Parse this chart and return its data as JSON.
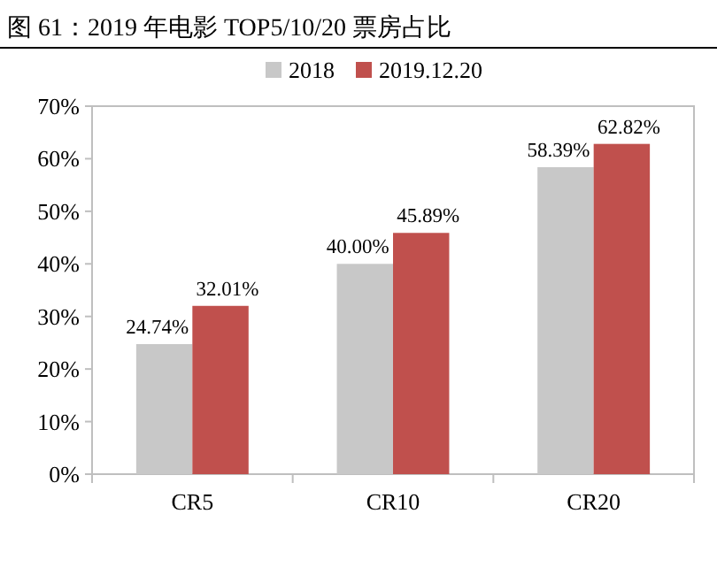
{
  "chart_data": {
    "type": "bar",
    "title": "图 61：2019 年电影 TOP5/10/20 票房占比",
    "categories": [
      "CR5",
      "CR10",
      "CR20"
    ],
    "series": [
      {
        "name": "2018",
        "color": "#c8c8c8",
        "values": [
          24.74,
          40.0,
          58.39
        ],
        "value_labels": [
          "24.74%",
          "40.00%",
          "58.39%"
        ]
      },
      {
        "name": "2019.12.20",
        "color": "#c0504d",
        "values": [
          32.01,
          45.89,
          62.82
        ],
        "value_labels": [
          "32.01%",
          "45.89%",
          "62.82%"
        ]
      }
    ],
    "ylim": [
      0,
      70
    ],
    "yticks": [
      {
        "value": 0,
        "label": "0%"
      },
      {
        "value": 10,
        "label": "10%"
      },
      {
        "value": 20,
        "label": "20%"
      },
      {
        "value": 30,
        "label": "30%"
      },
      {
        "value": 40,
        "label": "40%"
      },
      {
        "value": 50,
        "label": "50%"
      },
      {
        "value": 60,
        "label": "60%"
      },
      {
        "value": 70,
        "label": "70%"
      }
    ],
    "legend": "top"
  }
}
